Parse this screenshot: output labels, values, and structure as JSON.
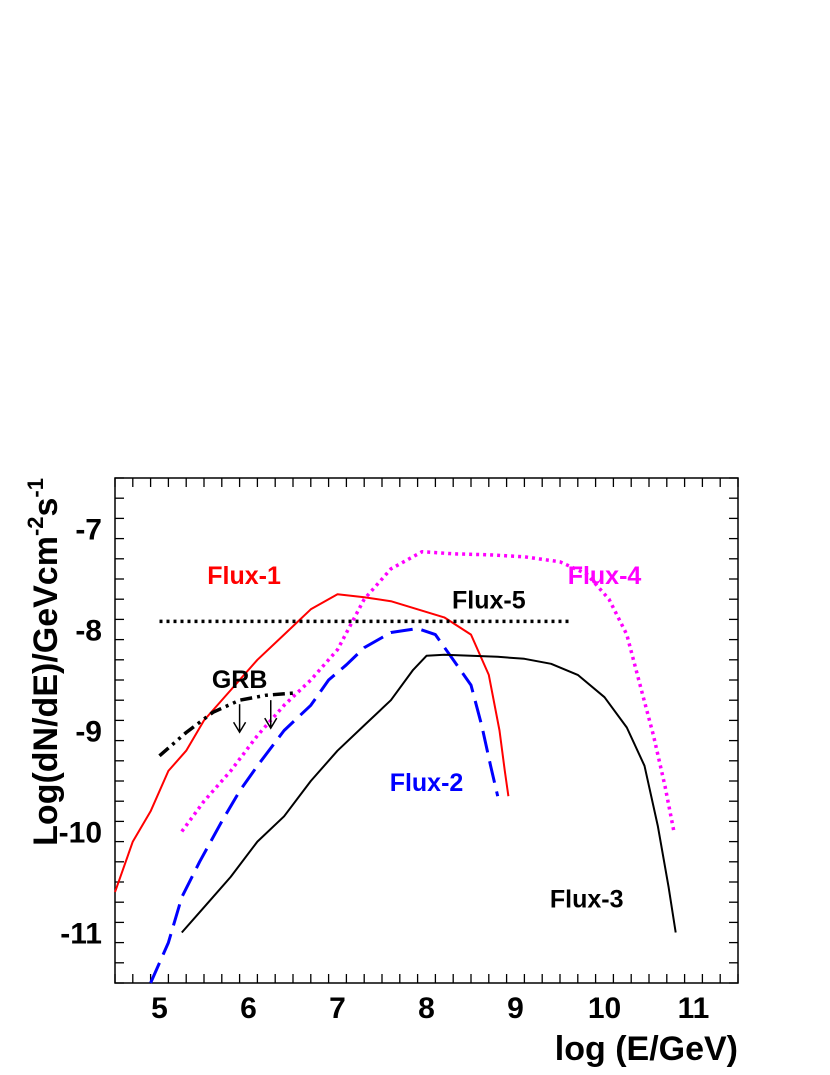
{
  "chart_data": {
    "type": "line",
    "xlabel": "log (E/GeV)",
    "ylabel": "Log(dN/dE)/GeVcm^-2s^-1",
    "xlim": [
      4.5,
      11.5
    ],
    "ylim": [
      -11.5,
      -6.5
    ],
    "xticks": [
      "5",
      "6",
      "7",
      "8",
      "9",
      "10",
      "11"
    ],
    "yticks": [
      "-7",
      "-8",
      "-9",
      "-10",
      "-11"
    ],
    "grid": false,
    "legend": "none",
    "series": [
      {
        "name": "Flux-1",
        "color": "#ff0000",
        "style": "solid",
        "points": [
          [
            4.5,
            -10.6
          ],
          [
            4.7,
            -10.1
          ],
          [
            4.9,
            -9.8
          ],
          [
            5.1,
            -9.4
          ],
          [
            5.3,
            -9.2
          ],
          [
            5.5,
            -8.9
          ],
          [
            5.8,
            -8.6
          ],
          [
            6.1,
            -8.3
          ],
          [
            6.4,
            -8.05
          ],
          [
            6.7,
            -7.8
          ],
          [
            7.0,
            -7.65
          ],
          [
            7.3,
            -7.68
          ],
          [
            7.6,
            -7.72
          ],
          [
            7.9,
            -7.8
          ],
          [
            8.2,
            -7.88
          ],
          [
            8.5,
            -8.05
          ],
          [
            8.7,
            -8.45
          ],
          [
            8.82,
            -9.0
          ],
          [
            8.88,
            -9.4
          ],
          [
            8.92,
            -9.65
          ]
        ]
      },
      {
        "name": "Flux-2",
        "color": "#0000ff",
        "style": "dashed",
        "points": [
          [
            4.9,
            -11.5
          ],
          [
            5.1,
            -11.1
          ],
          [
            5.25,
            -10.65
          ],
          [
            5.45,
            -10.3
          ],
          [
            5.7,
            -9.9
          ],
          [
            5.9,
            -9.6
          ],
          [
            6.1,
            -9.35
          ],
          [
            6.4,
            -9.0
          ],
          [
            6.7,
            -8.75
          ],
          [
            6.9,
            -8.5
          ],
          [
            7.1,
            -8.35
          ],
          [
            7.3,
            -8.18
          ],
          [
            7.6,
            -8.03
          ],
          [
            7.9,
            -7.99
          ],
          [
            8.1,
            -8.05
          ],
          [
            8.3,
            -8.3
          ],
          [
            8.5,
            -8.55
          ],
          [
            8.62,
            -8.95
          ],
          [
            8.72,
            -9.35
          ],
          [
            8.8,
            -9.65
          ]
        ]
      },
      {
        "name": "Flux-3",
        "color": "#000000",
        "style": "solid",
        "points": [
          [
            5.25,
            -11.0
          ],
          [
            5.5,
            -10.75
          ],
          [
            5.8,
            -10.45
          ],
          [
            6.1,
            -10.1
          ],
          [
            6.4,
            -9.85
          ],
          [
            6.7,
            -9.5
          ],
          [
            7.0,
            -9.2
          ],
          [
            7.3,
            -8.95
          ],
          [
            7.6,
            -8.7
          ],
          [
            7.85,
            -8.4
          ],
          [
            8.0,
            -8.26
          ],
          [
            8.2,
            -8.25
          ],
          [
            8.5,
            -8.26
          ],
          [
            8.8,
            -8.27
          ],
          [
            9.1,
            -8.29
          ],
          [
            9.4,
            -8.34
          ],
          [
            9.7,
            -8.45
          ],
          [
            10.0,
            -8.67
          ],
          [
            10.25,
            -8.97
          ],
          [
            10.45,
            -9.35
          ],
          [
            10.6,
            -9.95
          ],
          [
            10.72,
            -10.55
          ],
          [
            10.8,
            -11.0
          ]
        ]
      },
      {
        "name": "Flux-4",
        "color": "#ff00ff",
        "style": "dotted",
        "points": [
          [
            5.25,
            -10.0
          ],
          [
            5.5,
            -9.7
          ],
          [
            5.8,
            -9.4
          ],
          [
            6.1,
            -9.05
          ],
          [
            6.4,
            -8.75
          ],
          [
            6.7,
            -8.5
          ],
          [
            7.0,
            -8.2
          ],
          [
            7.3,
            -7.7
          ],
          [
            7.6,
            -7.4
          ],
          [
            7.95,
            -7.23
          ],
          [
            8.3,
            -7.25
          ],
          [
            8.7,
            -7.26
          ],
          [
            9.1,
            -7.28
          ],
          [
            9.5,
            -7.33
          ],
          [
            9.8,
            -7.45
          ],
          [
            10.05,
            -7.7
          ],
          [
            10.25,
            -8.05
          ],
          [
            10.4,
            -8.55
          ],
          [
            10.55,
            -9.05
          ],
          [
            10.68,
            -9.55
          ],
          [
            10.78,
            -10.0
          ]
        ]
      },
      {
        "name": "Flux-5",
        "color": "#000000",
        "style": "dotted",
        "points": [
          [
            5.0,
            -7.92
          ],
          [
            9.6,
            -7.92
          ]
        ]
      },
      {
        "name": "GRB",
        "color": "#000000",
        "style": "dashdot",
        "points": [
          [
            5.0,
            -9.25
          ],
          [
            5.3,
            -9.02
          ],
          [
            5.6,
            -8.82
          ],
          [
            5.9,
            -8.7
          ],
          [
            6.2,
            -8.65
          ],
          [
            6.5,
            -8.63
          ]
        ],
        "upper_limits": [
          [
            5.9,
            -8.7
          ],
          [
            6.25,
            -8.66
          ]
        ]
      }
    ],
    "annotations": [
      {
        "text": "Flux-1",
        "x": 5.95,
        "y": -7.55,
        "color": "#ff0000"
      },
      {
        "text": "Flux-2",
        "x": 8.0,
        "y": -9.6,
        "color": "#0000ff"
      },
      {
        "text": "Flux-3",
        "x": 9.8,
        "y": -10.75,
        "color": "#000000"
      },
      {
        "text": "Flux-4",
        "x": 10.0,
        "y": -7.55,
        "color": "#ff00ff"
      },
      {
        "text": "Flux-5",
        "x": 8.7,
        "y": -7.79,
        "color": "#000000"
      },
      {
        "text": "GRB",
        "x": 5.9,
        "y": -8.58,
        "color": "#000000"
      }
    ]
  }
}
